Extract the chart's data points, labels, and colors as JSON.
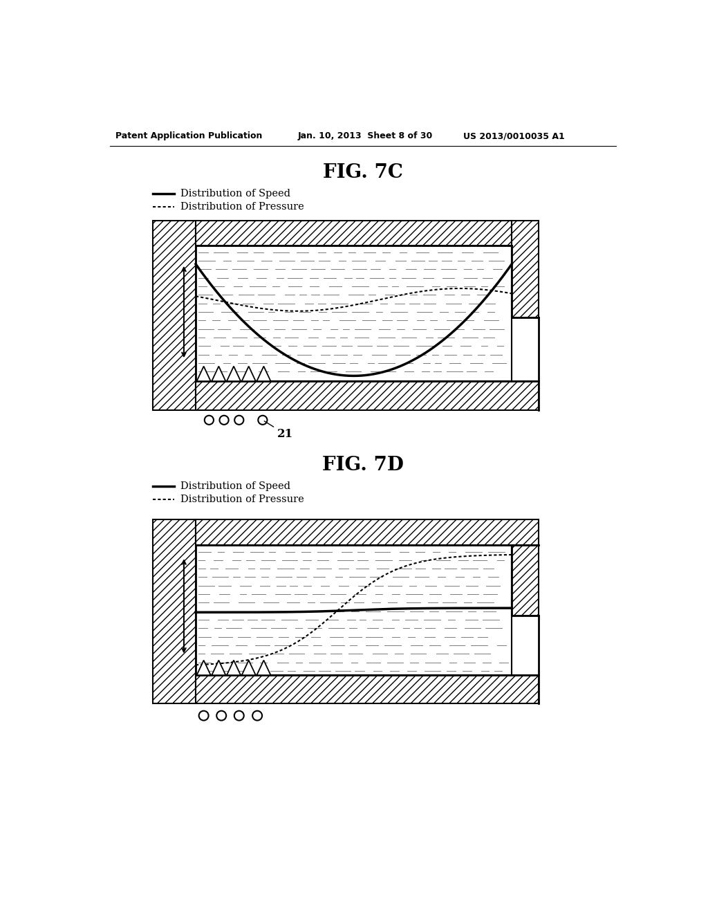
{
  "bg_color": "#ffffff",
  "header_left": "Patent Application Publication",
  "header_center": "Jan. 10, 2013  Sheet 8 of 30",
  "header_right": "US 2013/0010035 A1",
  "fig_7c_title": "FIG. 7C",
  "fig_7d_title": "FIG. 7D",
  "legend_speed": "Distribution of Speed",
  "legend_pressure": "Distribution of Pressure",
  "label_21": "21"
}
